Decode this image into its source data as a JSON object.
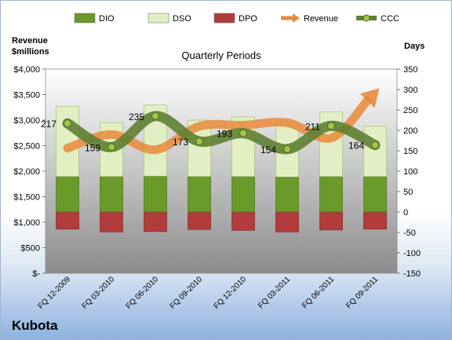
{
  "company": "Kubota",
  "chart_data": {
    "type": "bar",
    "title": "Quarterly Periods",
    "ylabel_left": "Revenue\n$millions",
    "ylabel_right": "Days",
    "categories": [
      "FQ 12-2009",
      "FQ 03-2010",
      "FQ 06-2010",
      "FQ 09-2010",
      "FQ 12-2010",
      "FQ 03-2011",
      "FQ 06-2011",
      "FQ 09-2011"
    ],
    "left_axis": {
      "ylim": [
        0,
        4000
      ],
      "ticks": [
        "$-",
        "$500",
        "$1,000",
        "$1,500",
        "$2,000",
        "$2,500",
        "$3,000",
        "$3,500",
        "$4,000"
      ]
    },
    "right_axis": {
      "ylim": [
        -150,
        350
      ],
      "ticks": [
        "-150",
        "-100",
        "-50",
        "0",
        "50",
        "100",
        "150",
        "200",
        "250",
        "300",
        "350"
      ]
    },
    "series": [
      {
        "name": "DIO",
        "axis": "right",
        "kind": "stacked-bar",
        "color": "#6a9a2a",
        "values": [
          87,
          87,
          88,
          87,
          87,
          86,
          87,
          87
        ]
      },
      {
        "name": "DSO",
        "axis": "right",
        "kind": "stacked-bar",
        "color": "#e2efc5",
        "values": [
          172,
          132,
          174,
          138,
          146,
          133,
          158,
          123
        ]
      },
      {
        "name": "DPO",
        "axis": "right",
        "kind": "negative-bar",
        "color": "#b23b3b",
        "values": [
          -42,
          -49,
          -48,
          -43,
          -45,
          -49,
          -44,
          -42
        ]
      },
      {
        "name": "Revenue",
        "axis": "left",
        "kind": "arrow-line",
        "color": "#e88a3a",
        "values": [
          2450,
          2720,
          2420,
          2880,
          2900,
          2950,
          2650,
          3380
        ]
      },
      {
        "name": "CCC",
        "axis": "right",
        "kind": "line",
        "color": "#5f7f33",
        "values": [
          217,
          159,
          235,
          173,
          193,
          154,
          211,
          164
        ]
      }
    ],
    "data_labels": [
      "217",
      "159",
      "235",
      "173",
      "193",
      "154",
      "211",
      "164"
    ],
    "legend": {
      "placement": "top",
      "entries": [
        "DIO",
        "DSO",
        "DPO",
        "Revenue",
        "CCC"
      ]
    },
    "grid": false
  }
}
